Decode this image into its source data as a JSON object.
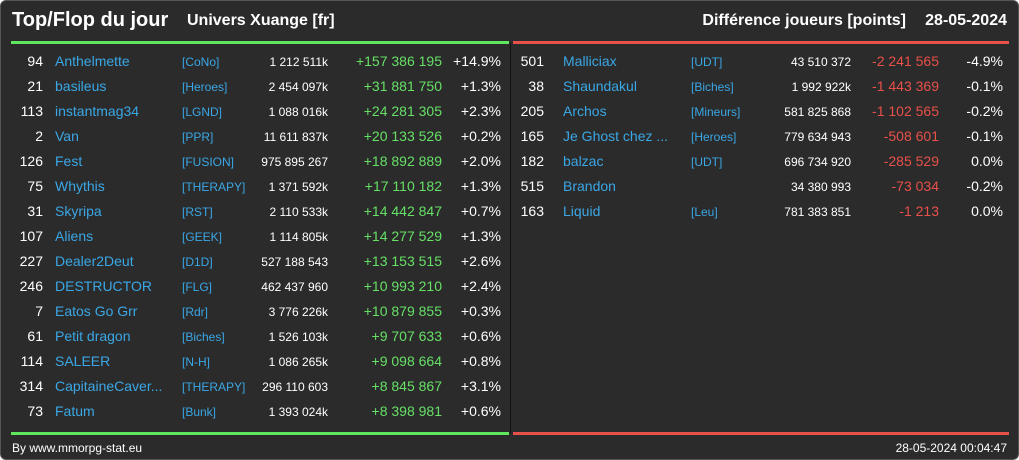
{
  "header": {
    "title": "Top/Flop du jour",
    "universe": "Univers Xuange [fr]",
    "metric": "Différence joueurs [points]",
    "date": "28-05-2024"
  },
  "colors": {
    "positive": "#66e066",
    "negative": "#e8504a",
    "name": "#3aa7e6",
    "background": "#2b2b2b"
  },
  "top": [
    {
      "rank": "94",
      "name": "Anthelmette",
      "ally": "[CoNo]",
      "points": "1 212 511k",
      "diff": "+157 386 195",
      "pct": "+14.9%"
    },
    {
      "rank": "21",
      "name": "basileus",
      "ally": "[Heroes]",
      "points": "2 454 097k",
      "diff": "+31 881 750",
      "pct": "+1.3%"
    },
    {
      "rank": "113",
      "name": "instantmag34",
      "ally": "[LGND]",
      "points": "1 088 016k",
      "diff": "+24 281 305",
      "pct": "+2.3%"
    },
    {
      "rank": "2",
      "name": "Van",
      "ally": "[PPR]",
      "points": "11 611 837k",
      "diff": "+20 133 526",
      "pct": "+0.2%"
    },
    {
      "rank": "126",
      "name": "Fest",
      "ally": "[FUSION]",
      "points": "975 895 267",
      "diff": "+18 892 889",
      "pct": "+2.0%"
    },
    {
      "rank": "75",
      "name": "Whythis",
      "ally": "[THERAPY]",
      "points": "1 371 592k",
      "diff": "+17 110 182",
      "pct": "+1.3%"
    },
    {
      "rank": "31",
      "name": "Skyripa",
      "ally": "[RST]",
      "points": "2 110 533k",
      "diff": "+14 442 847",
      "pct": "+0.7%"
    },
    {
      "rank": "107",
      "name": "Aliens",
      "ally": "[GEEK]",
      "points": "1 114 805k",
      "diff": "+14 277 529",
      "pct": "+1.3%"
    },
    {
      "rank": "227",
      "name": "Dealer2Deut",
      "ally": "[D1D]",
      "points": "527 188 543",
      "diff": "+13 153 515",
      "pct": "+2.6%"
    },
    {
      "rank": "246",
      "name": "DESTRUCTOR",
      "ally": "[FLG]",
      "points": "462 437 960",
      "diff": "+10 993 210",
      "pct": "+2.4%"
    },
    {
      "rank": "7",
      "name": "Eatos Go Grr",
      "ally": "[Rdr]",
      "points": "3 776 226k",
      "diff": "+10 879 855",
      "pct": "+0.3%"
    },
    {
      "rank": "61",
      "name": "Petit dragon",
      "ally": "[Biches]",
      "points": "1 526 103k",
      "diff": "+9 707 633",
      "pct": "+0.6%"
    },
    {
      "rank": "114",
      "name": "SALEER",
      "ally": "[N-H]",
      "points": "1 086 265k",
      "diff": "+9 098 664",
      "pct": "+0.8%"
    },
    {
      "rank": "314",
      "name": "CapitaineCaver...",
      "ally": "[THERAPY]",
      "points": "296 110 603",
      "diff": "+8 845 867",
      "pct": "+3.1%"
    },
    {
      "rank": "73",
      "name": "Fatum",
      "ally": "[Bunk]",
      "points": "1 393 024k",
      "diff": "+8 398 981",
      "pct": "+0.6%"
    }
  ],
  "flop": [
    {
      "rank": "501",
      "name": "Malliciax",
      "ally": "[UDT]",
      "points": "43 510 372",
      "diff": "-2 241 565",
      "pct": "-4.9%"
    },
    {
      "rank": "38",
      "name": "Shaundakul",
      "ally": "[Biches]",
      "points": "1 992 922k",
      "diff": "-1 443 369",
      "pct": "-0.1%"
    },
    {
      "rank": "205",
      "name": "Archos",
      "ally": "[Mineurs]",
      "points": "581 825 868",
      "diff": "-1 102 565",
      "pct": "-0.2%"
    },
    {
      "rank": "165",
      "name": "Je Ghost chez ...",
      "ally": "[Heroes]",
      "points": "779 634 943",
      "diff": "-508 601",
      "pct": "-0.1%"
    },
    {
      "rank": "182",
      "name": "balzac",
      "ally": "[UDT]",
      "points": "696 734 920",
      "diff": "-285 529",
      "pct": "0.0%"
    },
    {
      "rank": "515",
      "name": "Brandon",
      "ally": "",
      "points": "34 380 993",
      "diff": "-73 034",
      "pct": "-0.2%"
    },
    {
      "rank": "163",
      "name": "Liquid",
      "ally": "[Leu]",
      "points": "781 383 851",
      "diff": "-1 213",
      "pct": "0.0%"
    }
  ],
  "footer": {
    "credit": "By www.mmorpg-stat.eu",
    "timestamp": "28-05-2024 00:04:47"
  }
}
